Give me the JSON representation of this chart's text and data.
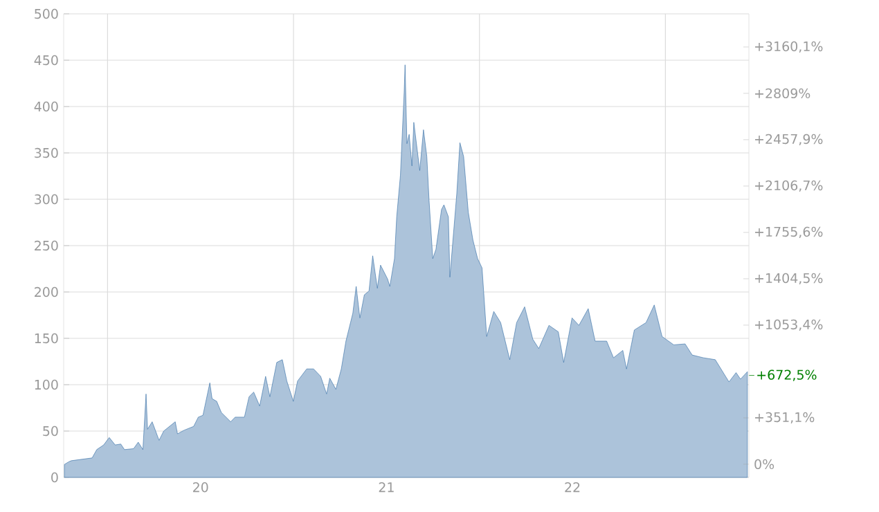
{
  "chart_data": {
    "type": "area",
    "grid": true,
    "x": [
      2019.268,
      2019.293,
      2019.305,
      2019.417,
      2019.442,
      2019.479,
      2019.509,
      2019.541,
      2019.571,
      2019.591,
      2019.64,
      2019.665,
      2019.69,
      2019.707,
      2019.715,
      2019.74,
      2019.777,
      2019.802,
      2019.864,
      2019.876,
      2019.913,
      2019.963,
      2019.988,
      2020.013,
      2020.05,
      2020.062,
      2020.087,
      2020.112,
      2020.162,
      2020.186,
      2020.236,
      2020.261,
      2020.286,
      2020.318,
      2020.35,
      2020.373,
      2020.41,
      2020.44,
      2020.464,
      2020.499,
      2020.522,
      2020.571,
      2020.608,
      2020.646,
      2020.678,
      2020.695,
      2020.728,
      2020.757,
      2020.782,
      2020.819,
      2020.837,
      2020.857,
      2020.881,
      2020.906,
      2020.926,
      2020.951,
      2020.968,
      2021.006,
      2021.018,
      2021.043,
      2021.055,
      2021.075,
      2021.095,
      2021.1,
      2021.11,
      2021.122,
      2021.137,
      2021.147,
      2021.179,
      2021.199,
      2021.217,
      2021.229,
      2021.249,
      2021.266,
      2021.296,
      2021.309,
      2021.333,
      2021.341,
      2021.378,
      2021.395,
      2021.415,
      2021.44,
      2021.465,
      2021.49,
      2021.514,
      2021.539,
      2021.577,
      2021.614,
      2021.663,
      2021.7,
      2021.743,
      2021.787,
      2021.819,
      2021.874,
      2021.924,
      2021.953,
      2021.998,
      2022.035,
      2022.085,
      2022.122,
      2022.184,
      2022.221,
      2022.271,
      2022.291,
      2022.333,
      2022.396,
      2022.44,
      2022.482,
      2022.545,
      2022.606,
      2022.644,
      2022.705,
      2022.768,
      2022.842,
      2022.88,
      2022.904,
      2022.941
    ],
    "series": [
      {
        "color": "#2f6aa3",
        "values": [
          14,
          17,
          18,
          21,
          30,
          35,
          43,
          35,
          36,
          30,
          31,
          38,
          30,
          90,
          52,
          60,
          40,
          50,
          60,
          47,
          51,
          55,
          65,
          67,
          102,
          85,
          82,
          70,
          60,
          65,
          65,
          87,
          92,
          77,
          109,
          87,
          124,
          127,
          104,
          82,
          104,
          117,
          117,
          109,
          90,
          107,
          95,
          117,
          147,
          177,
          206,
          172,
          197,
          201,
          239,
          204,
          229,
          214,
          206,
          236,
          281,
          326,
          415,
          445,
          360,
          370,
          336,
          383,
          331,
          375,
          346,
          299,
          236,
          246,
          289,
          294,
          281,
          216,
          306,
          361,
          346,
          286,
          256,
          236,
          226,
          152,
          179,
          167,
          127,
          167,
          184,
          149,
          139,
          164,
          157,
          124,
          172,
          164,
          182,
          147,
          147,
          129,
          137,
          117,
          159,
          167,
          186,
          152,
          143,
          144,
          132,
          129,
          127,
          103,
          113,
          106,
          114
        ]
      }
    ],
    "xlim": [
      2019.264,
      2022.949
    ],
    "xticks": [
      {
        "value": 2019.5,
        "label": null
      },
      {
        "value": 2020,
        "label": "20"
      },
      {
        "value": 2020.5,
        "label": null
      },
      {
        "value": 2021,
        "label": "21"
      },
      {
        "value": 2021.5,
        "label": null
      },
      {
        "value": 2022,
        "label": "22"
      },
      {
        "value": 2022.5,
        "label": null
      }
    ],
    "ylim": [
      0,
      500
    ],
    "yticks": [
      0,
      50,
      100,
      150,
      200,
      250,
      300,
      350,
      400,
      450,
      500
    ],
    "y2lim": [
      -100,
      3411.2
    ],
    "y2ticks": [
      {
        "value": 0,
        "label": "0%"
      },
      {
        "value": 351.1,
        "label": "+351,1%"
      },
      {
        "value": 1053.4,
        "label": "+1053,4%"
      },
      {
        "value": 1404.5,
        "label": "+1404,5%"
      },
      {
        "value": 1755.6,
        "label": "+1755,6%"
      },
      {
        "value": 2106.7,
        "label": "+2106,7%"
      },
      {
        "value": 2457.9,
        "label": "+2457,9%"
      },
      {
        "value": 2809,
        "label": "+2809%"
      },
      {
        "value": 3160.1,
        "label": "+3160,1%"
      }
    ],
    "annotations": [
      {
        "text": "+672,5%",
        "x": 2022.941,
        "y": 110
      }
    ]
  }
}
